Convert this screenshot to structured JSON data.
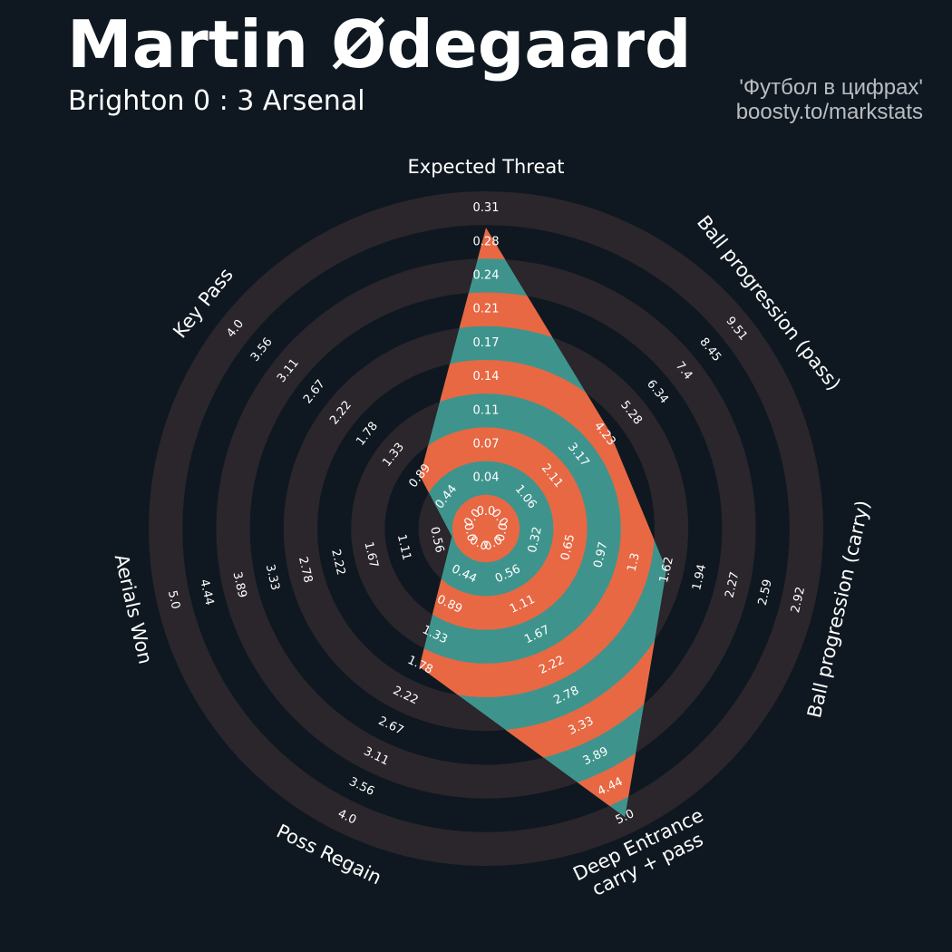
{
  "header": {
    "title": "Martin Ødegaard",
    "subtitle": "Brighton 0 : 3 Arsenal",
    "credit_line1": "'Футбол в цифрах'",
    "credit_line2": "boosty.to/markstats"
  },
  "colors": {
    "background": "#0f1820",
    "ring_band": "#2a262c",
    "fill_teal": "#3e948c",
    "fill_orange": "#e76843",
    "text": "#ffffff"
  },
  "chart_data": {
    "type": "radar",
    "params": [
      "Expected Threat",
      "Ball progression (pass)",
      "Ball progression (carry)",
      "Deep Entrance\ncarry + pass",
      "Poss Regain",
      "Aerials Won",
      "Key Pass"
    ],
    "ranges": [
      [
        0.0,
        0.31
      ],
      [
        0.0,
        9.51
      ],
      [
        0.0,
        2.92
      ],
      [
        0.0,
        5.0
      ],
      [
        0.0,
        4.0
      ],
      [
        0.0,
        5.0
      ],
      [
        0.0,
        4.0
      ]
    ],
    "tick_labels": [
      [
        "0.0",
        "0.04",
        "0.07",
        "0.11",
        "0.14",
        "0.17",
        "0.21",
        "0.24",
        "0.28",
        "0.31"
      ],
      [
        "0.0",
        "1.06",
        "2.11",
        "3.17",
        "4.23",
        "5.28",
        "6.34",
        "7.4",
        "8.45",
        "9.51"
      ],
      [
        "0.0",
        "0.32",
        "0.65",
        "0.97",
        "1.3",
        "1.62",
        "1.94",
        "2.27",
        "2.59",
        "2.92"
      ],
      [
        "0.0",
        "0.56",
        "1.11",
        "1.67",
        "2.22",
        "2.78",
        "3.33",
        "3.89",
        "4.44",
        "5.0"
      ],
      [
        "0.0",
        "0.44",
        "0.89",
        "1.33",
        "1.78",
        "2.22",
        "2.67",
        "3.11",
        "3.56",
        "4.0"
      ],
      [
        "0.0",
        "0.56",
        "1.11",
        "1.67",
        "2.22",
        "2.78",
        "3.33",
        "3.89",
        "4.44",
        "5.0"
      ],
      [
        "0.0",
        "0.44",
        "0.89",
        "1.33",
        "1.78",
        "2.22",
        "2.67",
        "3.11",
        "3.56",
        "4.0"
      ]
    ],
    "values": [
      0.29,
      4.4,
      1.62,
      5.0,
      1.8,
      0.3,
      0.89
    ],
    "grid": true,
    "legend": "none"
  }
}
